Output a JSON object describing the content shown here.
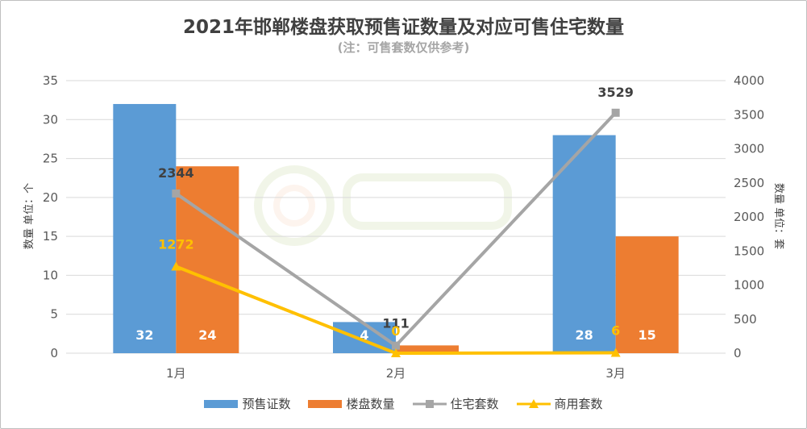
{
  "title": "2021年邯郸楼盘获取预售证数量及对应可售住宅数量",
  "subtitle": "(注：可售套数仅供参考)",
  "colors": {
    "presale": "#5b9bd5",
    "building": "#ed7d31",
    "residential": "#a5a5a5",
    "commercial": "#ffc000"
  },
  "chart_data": {
    "type": "bar",
    "categories": [
      "1月",
      "2月",
      "3月"
    ],
    "y_left": {
      "label": "数量 单位：个",
      "ylim": [
        0,
        35
      ],
      "ticks": [
        "0",
        "5",
        "10",
        "15",
        "20",
        "25",
        "30",
        "35"
      ]
    },
    "y_right": {
      "label": "数量 单位：套",
      "ylim": [
        0,
        4000
      ],
      "ticks": [
        "0",
        "500",
        "1000",
        "1500",
        "2000",
        "2500",
        "3000",
        "3500",
        "4000"
      ]
    },
    "grid": true,
    "legend": "bottom",
    "series": [
      {
        "name": "预售证数",
        "type": "bar",
        "axis": "left",
        "values": [
          32,
          4,
          28
        ],
        "labels": [
          "32",
          "4",
          "28"
        ]
      },
      {
        "name": "楼盘数量",
        "type": "bar",
        "axis": "left",
        "values": [
          24,
          1,
          15
        ],
        "labels": [
          "24",
          "",
          "15"
        ]
      },
      {
        "name": "住宅套数",
        "type": "line",
        "axis": "right",
        "values": [
          2344,
          111,
          3529
        ],
        "labels": [
          "2344",
          "111",
          "3529"
        ]
      },
      {
        "name": "商用套数",
        "type": "line",
        "axis": "right",
        "values": [
          1272,
          0,
          6
        ],
        "labels": [
          "1272",
          "0",
          "6"
        ]
      }
    ]
  }
}
